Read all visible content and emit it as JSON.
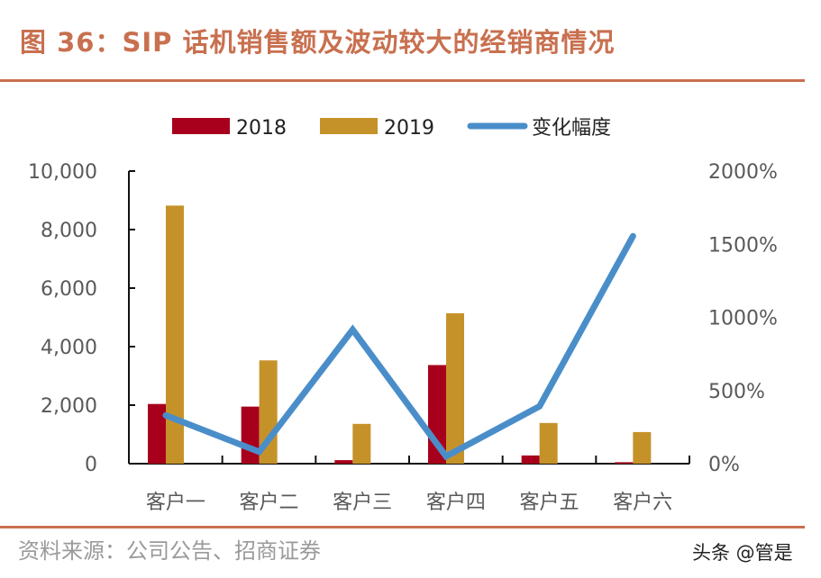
{
  "header": {
    "title": "图 36：SIP 话机销售额及波动较大的经销商情况"
  },
  "footer": {
    "source": "资料来源：公司公告、招商证券",
    "watermark": "头条 @管是"
  },
  "chart_data": {
    "type": "bar",
    "categories": [
      "客户一",
      "客户二",
      "客户三",
      "客户四",
      "客户五",
      "客户六"
    ],
    "series": [
      {
        "name": "2018",
        "type": "bar",
        "axis": "left",
        "color": "#a8001c",
        "values": [
          2040,
          1950,
          120,
          3370,
          280,
          50
        ]
      },
      {
        "name": "2019",
        "type": "bar",
        "axis": "left",
        "color": "#c5922a",
        "values": [
          8820,
          3530,
          1360,
          5140,
          1390,
          1080
        ]
      },
      {
        "name": "变化幅度",
        "type": "line",
        "axis": "right",
        "color": "#4a8ec9",
        "values": [
          330,
          81,
          916,
          50,
          392,
          1555
        ]
      }
    ],
    "ylim": [
      0,
      10000
    ],
    "yticks": [
      "0",
      "2,000",
      "4,000",
      "6,000",
      "8,000",
      "10,000"
    ],
    "y2lim": [
      0,
      2000
    ],
    "y2ticks": [
      "0%",
      "500%",
      "1000%",
      "1500%",
      "2000%"
    ],
    "legend": "top",
    "grid": false
  }
}
